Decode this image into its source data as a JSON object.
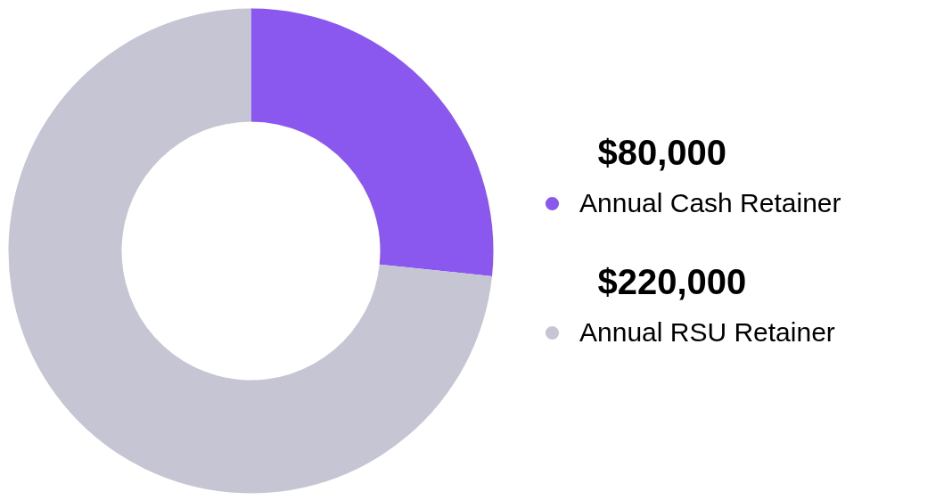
{
  "chart_data": {
    "type": "donut",
    "categories": [
      "Annual Cash Retainer",
      "Annual RSU Retainer"
    ],
    "values": [
      80000,
      220000
    ],
    "value_labels": [
      "$80,000",
      "$220,000"
    ],
    "colors": [
      "#8a58ef",
      "#c6c5d3"
    ],
    "legend": "right"
  }
}
